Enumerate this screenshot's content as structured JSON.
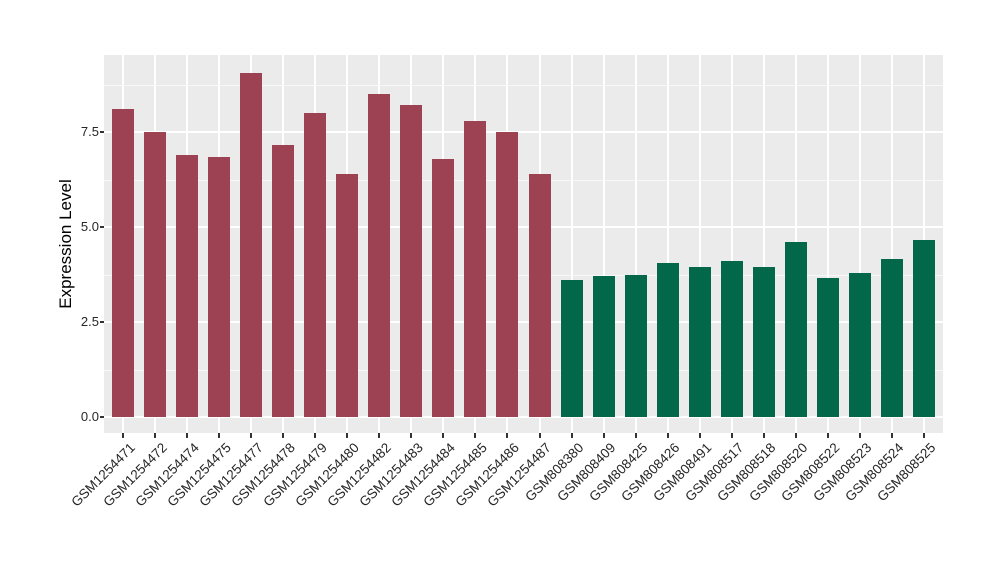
{
  "figure": {
    "background": "#FFFFFF",
    "axis_text_color": "#262626",
    "tick_mark_color": "#333333"
  },
  "chart_data": {
    "type": "bar",
    "title": "",
    "xlabel": "",
    "ylabel": "Expression Level",
    "categories": [
      "GSM1254471",
      "GSM1254472",
      "GSM1254474",
      "GSM1254475",
      "GSM1254477",
      "GSM1254478",
      "GSM1254479",
      "GSM1254480",
      "GSM1254482",
      "GSM1254483",
      "GSM1254484",
      "GSM1254485",
      "GSM1254486",
      "GSM1254487",
      "GSM808380",
      "GSM808409",
      "GSM808425",
      "GSM808426",
      "GSM808491",
      "GSM808517",
      "GSM808518",
      "GSM808520",
      "GSM808522",
      "GSM808523",
      "GSM808524",
      "GSM808525"
    ],
    "values": [
      8.1,
      7.5,
      6.9,
      6.85,
      9.05,
      7.15,
      8.0,
      6.4,
      8.5,
      8.2,
      6.8,
      7.8,
      7.5,
      6.4,
      3.6,
      3.7,
      3.75,
      4.05,
      3.95,
      4.1,
      3.95,
      4.6,
      3.65,
      3.8,
      4.15,
      4.65
    ],
    "group_index": [
      0,
      0,
      0,
      0,
      0,
      0,
      0,
      0,
      0,
      0,
      0,
      0,
      0,
      0,
      1,
      1,
      1,
      1,
      1,
      1,
      1,
      1,
      1,
      1,
      1,
      1
    ],
    "group_colors": [
      "#9C4253",
      "#036849"
    ],
    "yticks": [
      0,
      2.5,
      5.0,
      7.5
    ],
    "ytick_labels": [
      "0.0",
      "2.5",
      "5.0",
      "7.5"
    ],
    "ylim": [
      -0.45,
      9.5
    ],
    "grid": true,
    "legend": false,
    "panel_background": "#EBEBEB",
    "grid_color": "#FFFFFF"
  }
}
